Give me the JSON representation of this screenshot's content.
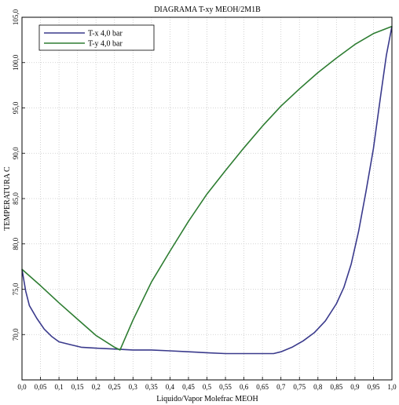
{
  "chart_data": {
    "type": "line",
    "title": "DIAGRAMA T-xy MEOH/2M1B",
    "xlabel": "Liquido/Vapor Molefrac MEOH",
    "ylabel": "TEMPERATURA C",
    "xlim": [
      0,
      1
    ],
    "ylim": [
      65.0,
      105.0
    ],
    "x_ticks": [
      "0,0",
      "0,05",
      "0,1",
      "0,15",
      "0,2",
      "0,25",
      "0,3",
      "0,35",
      "0,4",
      "0,45",
      "0,5",
      "0,55",
      "0,6",
      "0,65",
      "0,7",
      "0,75",
      "0,8",
      "0,85",
      "0,9",
      "0,95",
      "1,0"
    ],
    "y_ticks": [
      "70,0",
      "75,0",
      "80,0",
      "85,0",
      "90,0",
      "95,0",
      "100,0",
      "105,0"
    ],
    "y_tick_values": [
      70,
      75,
      80,
      85,
      90,
      95,
      100,
      105
    ],
    "grid": true,
    "legend_position": "top-left",
    "series": [
      {
        "name": "T-x  4,0 bar",
        "color": "#3a3a8c",
        "x": [
          0.0,
          0.01,
          0.02,
          0.04,
          0.06,
          0.08,
          0.1,
          0.13,
          0.16,
          0.2,
          0.25,
          0.3,
          0.35,
          0.4,
          0.45,
          0.5,
          0.55,
          0.6,
          0.65,
          0.68,
          0.7,
          0.73,
          0.76,
          0.79,
          0.82,
          0.85,
          0.87,
          0.89,
          0.91,
          0.93,
          0.95,
          0.97,
          0.985,
          1.0
        ],
        "y": [
          77.2,
          74.8,
          73.2,
          71.8,
          70.6,
          69.8,
          69.2,
          68.9,
          68.6,
          68.5,
          68.4,
          68.3,
          68.3,
          68.2,
          68.1,
          68.0,
          67.9,
          67.9,
          67.9,
          67.9,
          68.1,
          68.6,
          69.3,
          70.2,
          71.5,
          73.4,
          75.2,
          77.8,
          81.4,
          85.8,
          90.5,
          96.5,
          100.8,
          104.0
        ]
      },
      {
        "name": "T-y  4,0 bar",
        "color": "#2e7d32",
        "x": [
          0.0,
          0.05,
          0.1,
          0.15,
          0.2,
          0.25,
          0.265,
          0.3,
          0.35,
          0.4,
          0.45,
          0.5,
          0.55,
          0.6,
          0.65,
          0.7,
          0.75,
          0.8,
          0.85,
          0.9,
          0.95,
          1.0
        ],
        "y": [
          77.2,
          75.4,
          73.5,
          71.7,
          69.9,
          68.6,
          68.3,
          71.6,
          75.8,
          79.2,
          82.5,
          85.5,
          88.1,
          90.6,
          93.0,
          95.2,
          97.1,
          98.9,
          100.5,
          102.0,
          103.2,
          104.0
        ]
      }
    ]
  }
}
